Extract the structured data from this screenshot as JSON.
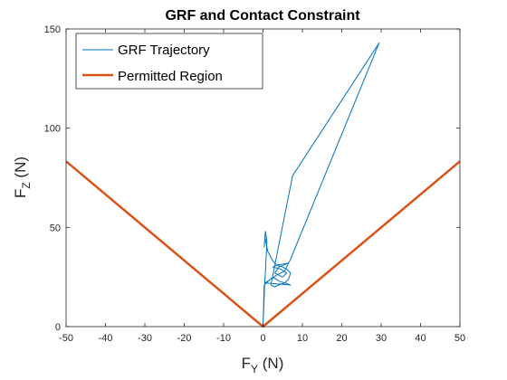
{
  "chart_data": {
    "type": "line",
    "title": "GRF and Contact Constraint",
    "xlabel": {
      "main": "F",
      "sub": "Y",
      "unit": " (N)"
    },
    "ylabel": {
      "main": "F",
      "sub": "Z",
      "unit": " (N)"
    },
    "xlim": [
      -50,
      50
    ],
    "ylim": [
      0,
      150
    ],
    "xticks": [
      -50,
      -40,
      -30,
      -20,
      -10,
      0,
      10,
      20,
      30,
      40,
      50
    ],
    "yticks": [
      0,
      50,
      100,
      150
    ],
    "grid": false,
    "legend_position": "top-left",
    "series": [
      {
        "name": "GRF Trajectory",
        "color": "#0072BD",
        "x": [
          0,
          0.4,
          0.8,
          1.0,
          0.6,
          0.3,
          0.5,
          1.2,
          2.5,
          3.5,
          5.0,
          6.0,
          7.0,
          6.5,
          5.5,
          4.0,
          3.0,
          2.0,
          7.5,
          29.5,
          7.0,
          6.5,
          3.5,
          2.5,
          4.5,
          6.0,
          5.0,
          3.0,
          4.0,
          6.5,
          5.5,
          3.5,
          2.0,
          0.5,
          7.0,
          4.0,
          2.5,
          0.3,
          0
        ],
        "y": [
          0,
          20,
          35,
          43,
          48,
          40,
          45,
          38,
          33,
          31,
          30,
          29,
          27,
          24,
          22,
          21,
          20,
          21,
          76,
          143,
          34,
          32,
          31,
          30,
          29,
          27,
          25,
          27,
          30,
          32,
          28,
          26,
          24,
          22,
          21,
          23,
          25,
          21,
          0
        ]
      },
      {
        "name": "Permitted Region",
        "color": "#D95319",
        "x": [
          -50,
          0,
          50
        ],
        "y": [
          83.3,
          0,
          83.3
        ]
      }
    ]
  }
}
